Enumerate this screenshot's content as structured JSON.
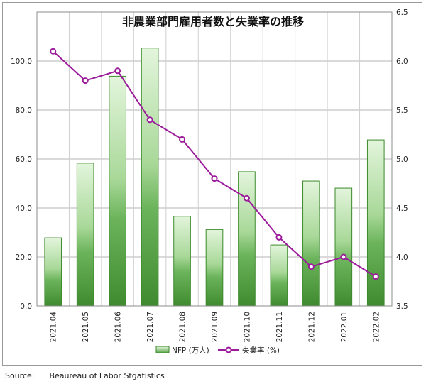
{
  "chart_data": {
    "type": "bar+line",
    "title": "非農業部門雇用者数と失業率の推移",
    "categories": [
      "2021.04",
      "2021.05",
      "2021.06",
      "2021.07",
      "2021.08",
      "2021.09",
      "2021.10",
      "2021.11",
      "2021.12",
      "2022.01",
      "2022.02"
    ],
    "series": [
      {
        "name": "NFP (万人)",
        "type": "bar",
        "axis": "left",
        "color": "#4e9a3a",
        "values": [
          27.8,
          58.3,
          93.8,
          105.3,
          36.6,
          31.2,
          54.8,
          24.9,
          51.0,
          48.1,
          67.8
        ]
      },
      {
        "name": "失業率 (%)",
        "type": "line",
        "axis": "right",
        "color": "#9b1b9b",
        "values": [
          6.1,
          5.8,
          5.9,
          5.4,
          5.2,
          4.8,
          4.6,
          4.2,
          3.9,
          4.0,
          3.8
        ]
      }
    ],
    "y_left": {
      "min": 0,
      "max": 120,
      "ticks": [
        "0.0",
        "20.0",
        "40.0",
        "60.0",
        "80.0",
        "100.0"
      ]
    },
    "y_right": {
      "min": 3.5,
      "max": 6.5,
      "ticks": [
        "3.5",
        "4.0",
        "4.5",
        "5.0",
        "5.5",
        "6.0",
        "6.5"
      ]
    },
    "grid": true,
    "legend_position": "bottom"
  },
  "source": "Source:      Beaureau of Labor Stgatistics"
}
